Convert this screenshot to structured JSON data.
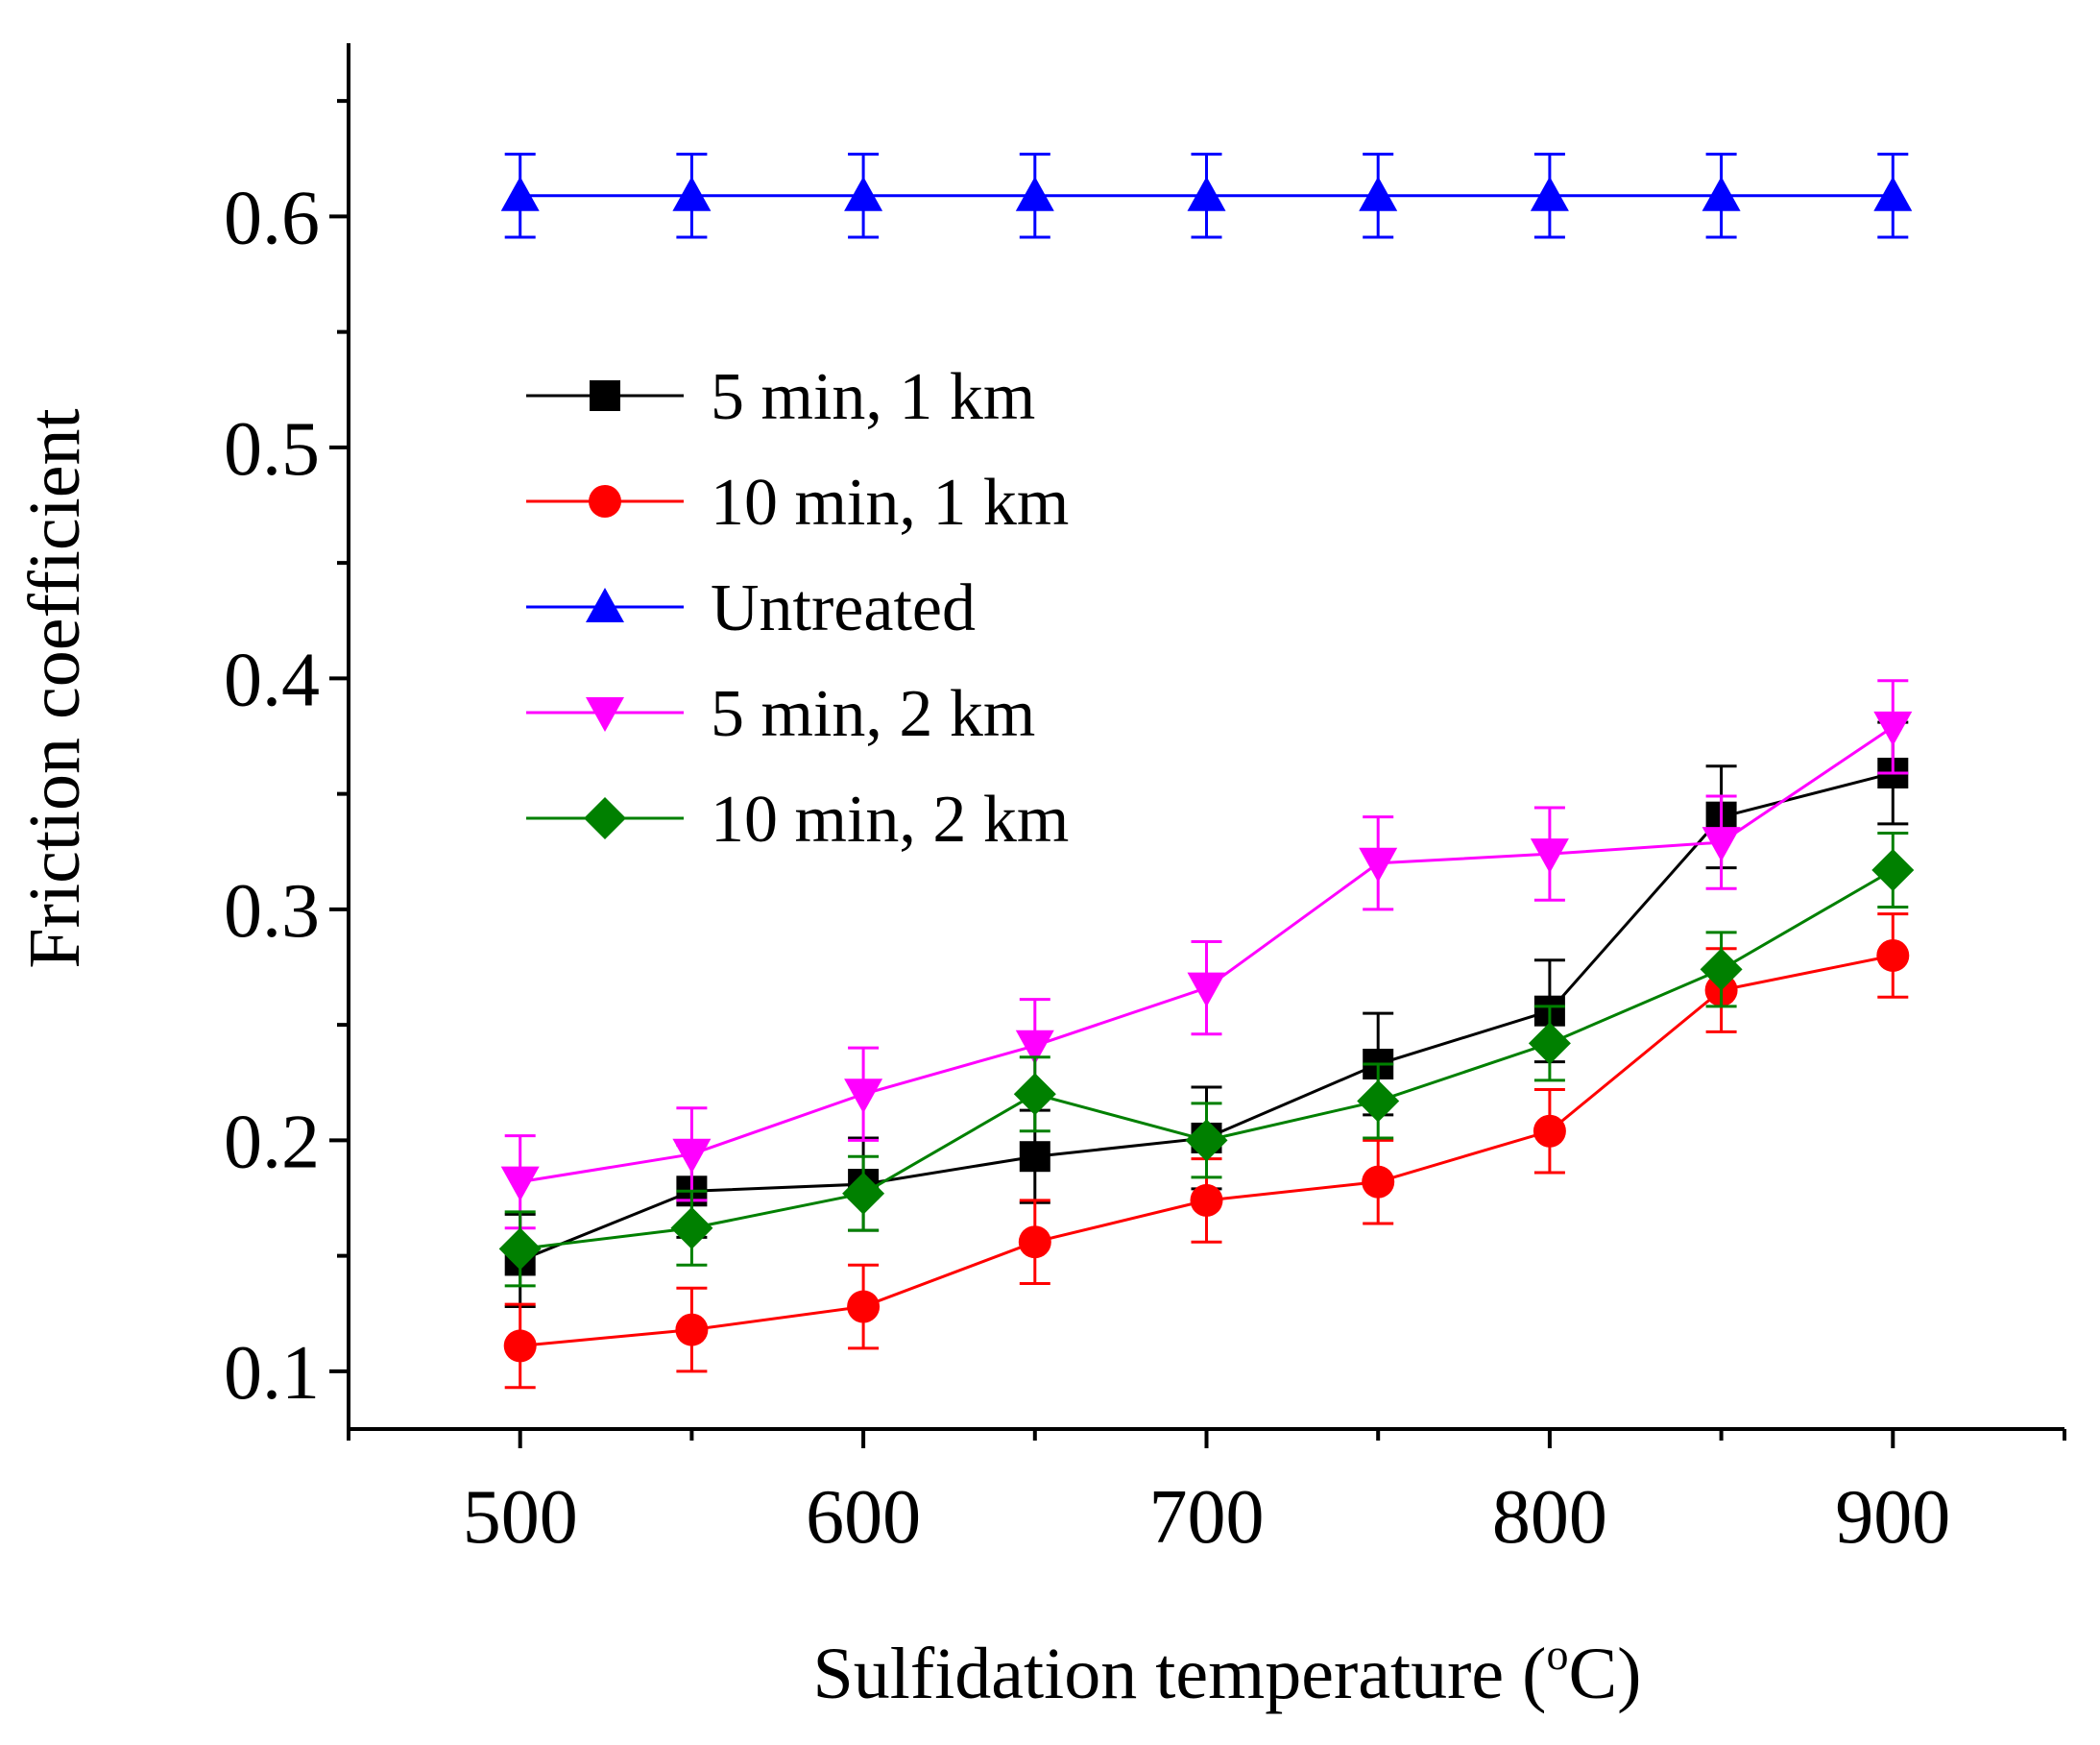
{
  "chart_data": {
    "type": "line",
    "x": [
      500,
      550,
      600,
      650,
      700,
      750,
      800,
      850,
      900
    ],
    "xlabel": "Sulfidation temperature (°C)",
    "xlabel_parts": {
      "prefix": "Sulfidation temperature (",
      "superscript": "o",
      "suffix": "C)"
    },
    "ylabel": "Friction coefficient",
    "xlim": [
      450,
      950
    ],
    "ylim": [
      0.075,
      0.675
    ],
    "x_ticks": [
      500,
      600,
      700,
      800,
      900
    ],
    "y_ticks": [
      0.1,
      0.2,
      0.3,
      0.4,
      0.5,
      0.6
    ],
    "y_tick_labels": [
      "0.1",
      "0.2",
      "0.3",
      "0.4",
      "0.5",
      "0.6"
    ],
    "grid": false,
    "legend_position": "upper-left",
    "series": [
      {
        "name": "5 min, 1 km",
        "color": "#000000",
        "marker": "square",
        "values": [
          0.148,
          0.178,
          0.181,
          0.193,
          0.201,
          0.233,
          0.256,
          0.34,
          0.359
        ],
        "errors": [
          0.02,
          0.02,
          0.02,
          0.02,
          0.022,
          0.022,
          0.022,
          0.022,
          0.022
        ]
      },
      {
        "name": "10 min, 1 km",
        "color": "#ff0000",
        "marker": "circle",
        "values": [
          0.111,
          0.118,
          0.128,
          0.156,
          0.174,
          0.182,
          0.204,
          0.265,
          0.28
        ],
        "errors": [
          0.018,
          0.018,
          0.018,
          0.018,
          0.018,
          0.018,
          0.018,
          0.018,
          0.018
        ]
      },
      {
        "name": "Untreated",
        "color": "#0000ff",
        "marker": "triangle-up",
        "values": [
          0.609,
          0.609,
          0.609,
          0.609,
          0.609,
          0.609,
          0.609,
          0.609,
          0.609
        ],
        "errors": [
          0.018,
          0.018,
          0.018,
          0.018,
          0.018,
          0.018,
          0.018,
          0.018,
          0.018
        ]
      },
      {
        "name": "5 min, 2 km",
        "color": "#ff00ff",
        "marker": "triangle-down",
        "values": [
          0.182,
          0.194,
          0.22,
          0.241,
          0.266,
          0.32,
          0.324,
          0.329,
          0.379
        ],
        "errors": [
          0.02,
          0.02,
          0.02,
          0.02,
          0.02,
          0.02,
          0.02,
          0.02,
          0.02
        ]
      },
      {
        "name": "10 min, 2 km",
        "color": "#008000",
        "marker": "diamond",
        "values": [
          0.153,
          0.162,
          0.177,
          0.22,
          0.2,
          0.217,
          0.242,
          0.274,
          0.317
        ],
        "errors": [
          0.016,
          0.016,
          0.016,
          0.016,
          0.016,
          0.016,
          0.016,
          0.016,
          0.016
        ]
      }
    ]
  }
}
